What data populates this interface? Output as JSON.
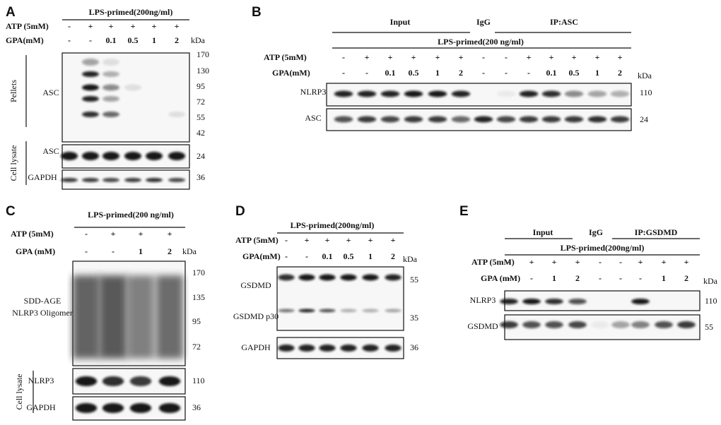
{
  "panels": [
    {
      "letter": "A",
      "treatment": "LPS-primed(200ng/ml)",
      "rows": [
        {
          "name": "ATP (5mM)",
          "cells": [
            "-",
            "+",
            "+",
            "+",
            "+",
            "+"
          ]
        },
        {
          "name": "GPA(mM)",
          "cells": [
            "-",
            "-",
            "0.1",
            "0.5",
            "1",
            "2"
          ]
        }
      ],
      "kda": "kDa",
      "groups": [
        "Pellets",
        "Cell  lysate"
      ],
      "blots": [
        {
          "label": "ASC",
          "markers": [
            "170",
            "130",
            "95",
            "72",
            "55",
            "42"
          ]
        },
        {
          "label": "ASC",
          "markers": [
            "24"
          ]
        },
        {
          "label": "GAPDH",
          "markers": [
            "36"
          ]
        }
      ]
    },
    {
      "letter": "B",
      "headers": [
        "Input",
        "IgG",
        "IP:ASC"
      ],
      "treatment": "LPS-primed(200 ng/ml)",
      "rows": [
        {
          "name": "ATP (5mM)",
          "cells": [
            "-",
            "+",
            "+",
            "+",
            "+",
            "+",
            "-",
            "-",
            "+",
            "+",
            "+",
            "+",
            "+"
          ]
        },
        {
          "name": "GPA(mM)",
          "cells": [
            "-",
            "-",
            "0.1",
            "0.5",
            "1",
            "2",
            "-",
            "-",
            "-",
            "0.1",
            "0.5",
            "1",
            "2"
          ]
        }
      ],
      "kda": "kDa",
      "blots": [
        {
          "label": "NLRP3",
          "markers": [
            "110"
          ]
        },
        {
          "label": "ASC",
          "markers": [
            "24"
          ]
        }
      ]
    },
    {
      "letter": "C",
      "treatment": "LPS-primed(200 ng/ml)",
      "rows": [
        {
          "name": "ATP (5mM)",
          "cells": [
            "-",
            "+",
            "+",
            "+"
          ]
        },
        {
          "name": "GPA (mM)",
          "cells": [
            "-",
            "-",
            "1",
            "2"
          ]
        }
      ],
      "kda": "kDa",
      "groups": [
        "Cell  lysate"
      ],
      "blots": [
        {
          "label": [
            "SDD-AGE",
            "NLRP3 Oligomer"
          ],
          "markers": [
            "170",
            "135",
            "95",
            "72"
          ]
        },
        {
          "label": "NLRP3",
          "markers": [
            "110"
          ]
        },
        {
          "label": "GAPDH",
          "markers": [
            "36"
          ]
        }
      ]
    },
    {
      "letter": "D",
      "treatment": "LPS-primed(200ng/ml)",
      "rows": [
        {
          "name": "ATP (5mM)",
          "cells": [
            "-",
            "+",
            "+",
            "+",
            "+",
            "+"
          ]
        },
        {
          "name": "GPA(mM)",
          "cells": [
            "-",
            "-",
            "0.1",
            "0.5",
            "1",
            "2"
          ]
        }
      ],
      "kda": "kDa",
      "blots": [
        {
          "label": [
            "GSDMD",
            "GSDMD p30"
          ],
          "markers": [
            "55",
            "35"
          ]
        },
        {
          "label": "GAPDH",
          "markers": [
            "36"
          ]
        }
      ]
    },
    {
      "letter": "E",
      "headers": [
        "Input",
        "IgG",
        "IP:GSDMD"
      ],
      "treatment": "LPS-primed(200ng/ml)",
      "rows": [
        {
          "name": "ATP (5mM)",
          "cells": [
            "-",
            "+",
            "+",
            "+",
            "-",
            "-",
            "+",
            "+",
            "+"
          ]
        },
        {
          "name": "GPA (mM)",
          "cells": [
            "-",
            "-",
            "1",
            "2",
            "-",
            "-",
            "-",
            "1",
            "2"
          ]
        }
      ],
      "kda": "kDa",
      "blots": [
        {
          "label": "NLRP3",
          "markers": [
            "110"
          ]
        },
        {
          "label": "GSDMD",
          "markers": [
            "55"
          ]
        }
      ]
    }
  ]
}
